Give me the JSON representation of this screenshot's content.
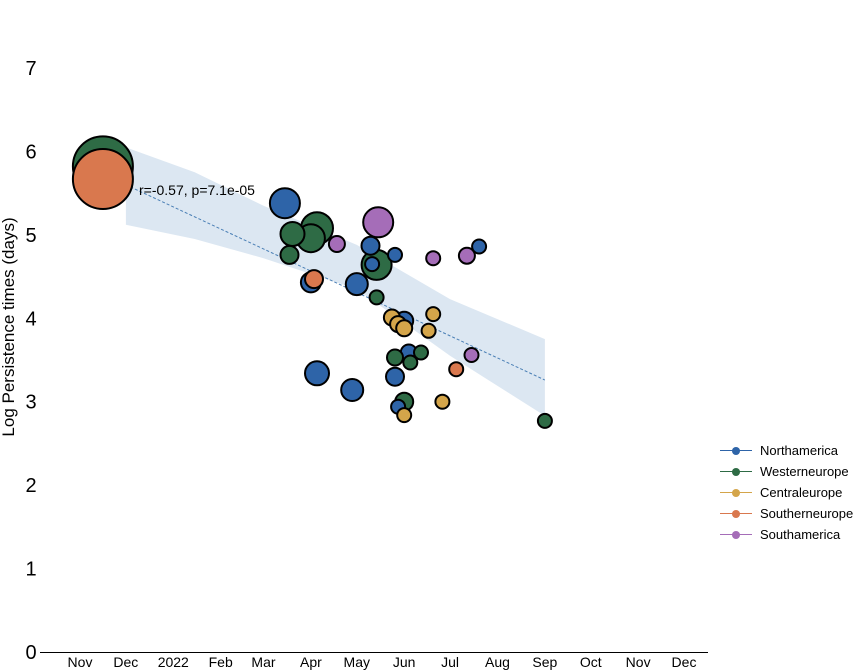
{
  "chart_data": {
    "type": "scatter",
    "title": "",
    "xlabel": "",
    "ylabel": "Log Persistence times (days)",
    "ylim": [
      0,
      7
    ],
    "yticks": [
      0,
      1,
      2,
      3,
      4,
      5,
      6,
      7
    ],
    "xlim": [
      "2021-10-27",
      "2022-12-29"
    ],
    "xticks": [
      {
        "date": "2021-11-01",
        "label": "Nov"
      },
      {
        "date": "2021-12-01",
        "label": "Dec"
      },
      {
        "date": "2022-01-01",
        "label": "2022"
      },
      {
        "date": "2022-02-01",
        "label": "Feb"
      },
      {
        "date": "2022-03-01",
        "label": "Mar"
      },
      {
        "date": "2022-04-01",
        "label": "Apr"
      },
      {
        "date": "2022-05-01",
        "label": "May"
      },
      {
        "date": "2022-06-01",
        "label": "Jun"
      },
      {
        "date": "2022-07-01",
        "label": "Jul"
      },
      {
        "date": "2022-08-01",
        "label": "Aug"
      },
      {
        "date": "2022-09-01",
        "label": "Sep"
      },
      {
        "date": "2022-10-01",
        "label": "Oct"
      },
      {
        "date": "2022-11-01",
        "label": "Nov"
      },
      {
        "date": "2022-12-01",
        "label": "Dec"
      }
    ],
    "annotation": "r=-0.57, p=7.1e-05",
    "grid": false,
    "legend_position": "right",
    "regression": {
      "line": [
        [
          "2021-12-01",
          5.6
        ],
        [
          "2022-09-01",
          3.26
        ]
      ],
      "ci_upper": [
        [
          "2021-12-01",
          6.05
        ],
        [
          "2022-01-15",
          5.75
        ],
        [
          "2022-03-01",
          5.35
        ],
        [
          "2022-05-01",
          4.88
        ],
        [
          "2022-07-01",
          4.23
        ],
        [
          "2022-09-01",
          3.75
        ]
      ],
      "ci_lower": [
        [
          "2021-12-01",
          5.12
        ],
        [
          "2022-01-15",
          4.95
        ],
        [
          "2022-03-01",
          4.72
        ],
        [
          "2022-05-01",
          4.35
        ],
        [
          "2022-07-01",
          3.55
        ],
        [
          "2022-09-01",
          2.83
        ]
      ],
      "color": "#4a7fb5",
      "band_color": "#dce7f2"
    },
    "series": [
      {
        "name": "Northamerica",
        "color": "#2e64a8",
        "points": [
          {
            "x": "2022-03-15",
            "y": 5.38,
            "size": 15
          },
          {
            "x": "2022-04-01",
            "y": 4.43,
            "size": 10
          },
          {
            "x": "2022-04-05",
            "y": 3.34,
            "size": 12
          },
          {
            "x": "2022-04-28",
            "y": 3.14,
            "size": 11
          },
          {
            "x": "2022-05-01",
            "y": 4.41,
            "size": 11
          },
          {
            "x": "2022-05-10",
            "y": 4.87,
            "size": 9
          },
          {
            "x": "2022-05-11",
            "y": 4.65,
            "size": 7
          },
          {
            "x": "2022-05-26",
            "y": 4.76,
            "size": 7
          },
          {
            "x": "2022-05-26",
            "y": 3.3,
            "size": 9
          },
          {
            "x": "2022-05-28",
            "y": 2.94,
            "size": 7
          },
          {
            "x": "2022-06-01",
            "y": 3.97,
            "size": 9
          },
          {
            "x": "2022-06-04",
            "y": 3.59,
            "size": 8
          },
          {
            "x": "2022-07-20",
            "y": 4.86,
            "size": 7
          }
        ]
      },
      {
        "name": "Westerneurope",
        "color": "#2e6b45",
        "points": [
          {
            "x": "2021-11-16",
            "y": 5.82,
            "size": 30
          },
          {
            "x": "2022-03-18",
            "y": 4.76,
            "size": 9
          },
          {
            "x": "2022-03-20",
            "y": 5.01,
            "size": 12
          },
          {
            "x": "2022-04-01",
            "y": 4.96,
            "size": 14
          },
          {
            "x": "2022-04-05",
            "y": 5.08,
            "size": 16
          },
          {
            "x": "2022-05-14",
            "y": 4.64,
            "size": 15
          },
          {
            "x": "2022-05-14",
            "y": 4.25,
            "size": 7
          },
          {
            "x": "2022-05-26",
            "y": 3.53,
            "size": 8
          },
          {
            "x": "2022-06-01",
            "y": 3.0,
            "size": 9
          },
          {
            "x": "2022-06-05",
            "y": 3.47,
            "size": 7
          },
          {
            "x": "2022-06-12",
            "y": 3.59,
            "size": 7
          },
          {
            "x": "2022-09-01",
            "y": 2.77,
            "size": 7
          }
        ]
      },
      {
        "name": "Centraleurope",
        "color": "#d4a54a",
        "points": [
          {
            "x": "2022-05-24",
            "y": 4.01,
            "size": 8
          },
          {
            "x": "2022-05-28",
            "y": 3.93,
            "size": 8
          },
          {
            "x": "2022-06-01",
            "y": 3.88,
            "size": 8
          },
          {
            "x": "2022-06-01",
            "y": 2.84,
            "size": 7
          },
          {
            "x": "2022-06-17",
            "y": 3.85,
            "size": 7
          },
          {
            "x": "2022-06-20",
            "y": 4.05,
            "size": 7
          },
          {
            "x": "2022-06-26",
            "y": 3.0,
            "size": 7
          }
        ]
      },
      {
        "name": "Southerneurope",
        "color": "#d9784e",
        "points": [
          {
            "x": "2021-11-16",
            "y": 5.67,
            "size": 30
          },
          {
            "x": "2022-04-03",
            "y": 4.47,
            "size": 9
          },
          {
            "x": "2022-07-05",
            "y": 3.39,
            "size": 7
          }
        ]
      },
      {
        "name": "Southamerica",
        "color": "#a56db8",
        "points": [
          {
            "x": "2022-04-18",
            "y": 4.89,
            "size": 8
          },
          {
            "x": "2022-05-15",
            "y": 5.15,
            "size": 15
          },
          {
            "x": "2022-06-20",
            "y": 4.72,
            "size": 7
          },
          {
            "x": "2022-07-12",
            "y": 4.75,
            "size": 8
          },
          {
            "x": "2022-07-15",
            "y": 3.56,
            "size": 7
          }
        ]
      }
    ]
  }
}
